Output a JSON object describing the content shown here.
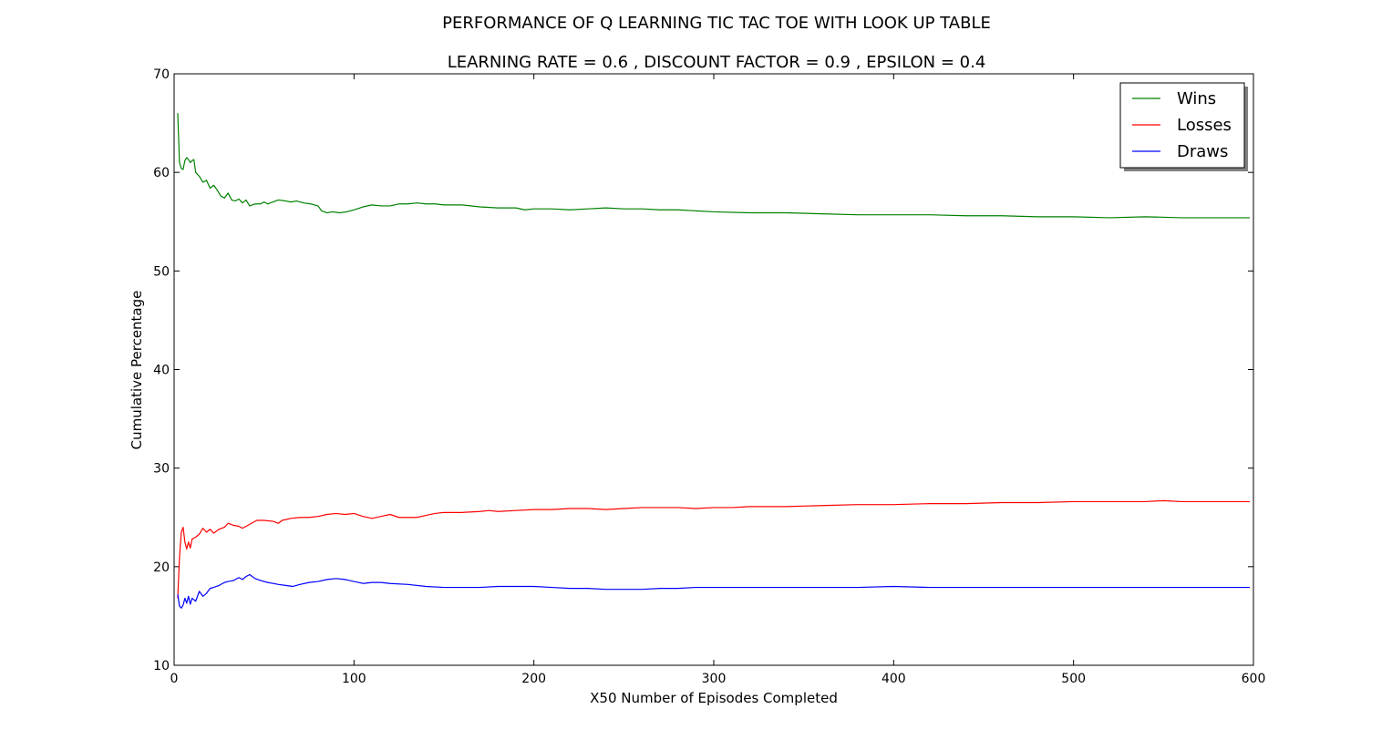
{
  "chart_data": {
    "type": "line",
    "title": "PERFORMANCE OF Q LEARNING TIC TAC TOE WITH LOOK UP TABLE",
    "subtitle": "LEARNING RATE =  0.6 , DISCOUNT FACTOR =  0.9 , EPSILON = 0.4",
    "xlabel": "X50 Number of Episodes Completed",
    "ylabel": "Cumulative Percentage",
    "xlim": [
      0,
      600
    ],
    "ylim": [
      10,
      70
    ],
    "xticks": [
      0,
      100,
      200,
      300,
      400,
      500,
      600
    ],
    "yticks": [
      10,
      20,
      30,
      40,
      50,
      60,
      70
    ],
    "grid": false,
    "legend_position": "top-right",
    "series": [
      {
        "name": "Wins",
        "color": "#008000",
        "points": [
          [
            2,
            66
          ],
          [
            3,
            61
          ],
          [
            4,
            60.4
          ],
          [
            5,
            60.3
          ],
          [
            6,
            61.2
          ],
          [
            7,
            61.5
          ],
          [
            8,
            61.3
          ],
          [
            9,
            61
          ],
          [
            10,
            61.2
          ],
          [
            11,
            61.3
          ],
          [
            12,
            60
          ],
          [
            14,
            59.6
          ],
          [
            16,
            59
          ],
          [
            18,
            59.2
          ],
          [
            20,
            58.4
          ],
          [
            22,
            58.7
          ],
          [
            24,
            58.2
          ],
          [
            26,
            57.6
          ],
          [
            28,
            57.4
          ],
          [
            30,
            57.9
          ],
          [
            32,
            57.2
          ],
          [
            34,
            57.1
          ],
          [
            36,
            57.3
          ],
          [
            38,
            56.9
          ],
          [
            40,
            57.2
          ],
          [
            42,
            56.6
          ],
          [
            45,
            56.8
          ],
          [
            48,
            56.8
          ],
          [
            50,
            57
          ],
          [
            52,
            56.8
          ],
          [
            55,
            57
          ],
          [
            58,
            57.2
          ],
          [
            62,
            57.1
          ],
          [
            65,
            57
          ],
          [
            68,
            57.1
          ],
          [
            72,
            56.9
          ],
          [
            76,
            56.8
          ],
          [
            80,
            56.6
          ],
          [
            82,
            56.1
          ],
          [
            85,
            55.9
          ],
          [
            88,
            56
          ],
          [
            92,
            55.9
          ],
          [
            96,
            56
          ],
          [
            100,
            56.2
          ],
          [
            105,
            56.5
          ],
          [
            110,
            56.7
          ],
          [
            115,
            56.6
          ],
          [
            120,
            56.6
          ],
          [
            125,
            56.8
          ],
          [
            130,
            56.8
          ],
          [
            135,
            56.9
          ],
          [
            140,
            56.8
          ],
          [
            145,
            56.8
          ],
          [
            150,
            56.7
          ],
          [
            160,
            56.7
          ],
          [
            170,
            56.5
          ],
          [
            180,
            56.4
          ],
          [
            190,
            56.4
          ],
          [
            195,
            56.2
          ],
          [
            200,
            56.3
          ],
          [
            210,
            56.3
          ],
          [
            220,
            56.2
          ],
          [
            230,
            56.3
          ],
          [
            240,
            56.4
          ],
          [
            250,
            56.3
          ],
          [
            260,
            56.3
          ],
          [
            270,
            56.2
          ],
          [
            280,
            56.2
          ],
          [
            290,
            56.1
          ],
          [
            300,
            56
          ],
          [
            320,
            55.9
          ],
          [
            340,
            55.9
          ],
          [
            360,
            55.8
          ],
          [
            380,
            55.7
          ],
          [
            400,
            55.7
          ],
          [
            420,
            55.7
          ],
          [
            440,
            55.6
          ],
          [
            460,
            55.6
          ],
          [
            480,
            55.5
          ],
          [
            500,
            55.5
          ],
          [
            520,
            55.4
          ],
          [
            540,
            55.5
          ],
          [
            560,
            55.4
          ],
          [
            580,
            55.4
          ],
          [
            598,
            55.4
          ]
        ]
      },
      {
        "name": "Losses",
        "color": "#ff0000",
        "points": [
          [
            2,
            16.8
          ],
          [
            3,
            21
          ],
          [
            4,
            23.5
          ],
          [
            5,
            24
          ],
          [
            6,
            22.5
          ],
          [
            7,
            21.8
          ],
          [
            8,
            22.5
          ],
          [
            9,
            21.9
          ],
          [
            10,
            22.8
          ],
          [
            12,
            23
          ],
          [
            14,
            23.3
          ],
          [
            16,
            23.9
          ],
          [
            18,
            23.5
          ],
          [
            20,
            23.8
          ],
          [
            22,
            23.4
          ],
          [
            25,
            23.8
          ],
          [
            28,
            24
          ],
          [
            30,
            24.4
          ],
          [
            33,
            24.2
          ],
          [
            36,
            24.1
          ],
          [
            38,
            23.9
          ],
          [
            40,
            24.1
          ],
          [
            43,
            24.4
          ],
          [
            46,
            24.7
          ],
          [
            50,
            24.7
          ],
          [
            55,
            24.6
          ],
          [
            58,
            24.4
          ],
          [
            60,
            24.7
          ],
          [
            65,
            24.9
          ],
          [
            70,
            25
          ],
          [
            75,
            25
          ],
          [
            80,
            25.1
          ],
          [
            85,
            25.3
          ],
          [
            90,
            25.4
          ],
          [
            95,
            25.3
          ],
          [
            100,
            25.4
          ],
          [
            105,
            25.1
          ],
          [
            110,
            24.9
          ],
          [
            115,
            25.1
          ],
          [
            120,
            25.3
          ],
          [
            125,
            25
          ],
          [
            130,
            25
          ],
          [
            135,
            25
          ],
          [
            140,
            25.2
          ],
          [
            145,
            25.4
          ],
          [
            150,
            25.5
          ],
          [
            160,
            25.5
          ],
          [
            170,
            25.6
          ],
          [
            175,
            25.7
          ],
          [
            180,
            25.6
          ],
          [
            190,
            25.7
          ],
          [
            200,
            25.8
          ],
          [
            210,
            25.8
          ],
          [
            220,
            25.9
          ],
          [
            230,
            25.9
          ],
          [
            240,
            25.8
          ],
          [
            250,
            25.9
          ],
          [
            260,
            26
          ],
          [
            270,
            26
          ],
          [
            280,
            26
          ],
          [
            290,
            25.9
          ],
          [
            300,
            26
          ],
          [
            310,
            26
          ],
          [
            320,
            26.1
          ],
          [
            340,
            26.1
          ],
          [
            360,
            26.2
          ],
          [
            380,
            26.3
          ],
          [
            400,
            26.3
          ],
          [
            420,
            26.4
          ],
          [
            440,
            26.4
          ],
          [
            460,
            26.5
          ],
          [
            480,
            26.5
          ],
          [
            500,
            26.6
          ],
          [
            520,
            26.6
          ],
          [
            540,
            26.6
          ],
          [
            550,
            26.7
          ],
          [
            560,
            26.6
          ],
          [
            580,
            26.6
          ],
          [
            598,
            26.6
          ]
        ]
      },
      {
        "name": "Draws",
        "color": "#0000ff",
        "points": [
          [
            2,
            17.2
          ],
          [
            3,
            16
          ],
          [
            4,
            15.8
          ],
          [
            5,
            16.1
          ],
          [
            6,
            16.8
          ],
          [
            7,
            16.3
          ],
          [
            8,
            17
          ],
          [
            9,
            16.2
          ],
          [
            10,
            16.8
          ],
          [
            12,
            16.5
          ],
          [
            14,
            17.5
          ],
          [
            16,
            17
          ],
          [
            18,
            17.3
          ],
          [
            20,
            17.8
          ],
          [
            22,
            17.9
          ],
          [
            25,
            18.1
          ],
          [
            28,
            18.4
          ],
          [
            30,
            18.5
          ],
          [
            33,
            18.6
          ],
          [
            36,
            18.9
          ],
          [
            38,
            18.7
          ],
          [
            40,
            19
          ],
          [
            42,
            19.2
          ],
          [
            45,
            18.8
          ],
          [
            48,
            18.6
          ],
          [
            52,
            18.4
          ],
          [
            55,
            18.3
          ],
          [
            58,
            18.2
          ],
          [
            62,
            18.1
          ],
          [
            66,
            18
          ],
          [
            70,
            18.2
          ],
          [
            75,
            18.4
          ],
          [
            80,
            18.5
          ],
          [
            85,
            18.7
          ],
          [
            90,
            18.8
          ],
          [
            95,
            18.7
          ],
          [
            100,
            18.5
          ],
          [
            105,
            18.3
          ],
          [
            110,
            18.4
          ],
          [
            115,
            18.4
          ],
          [
            120,
            18.3
          ],
          [
            130,
            18.2
          ],
          [
            140,
            18
          ],
          [
            150,
            17.9
          ],
          [
            160,
            17.9
          ],
          [
            170,
            17.9
          ],
          [
            180,
            18
          ],
          [
            190,
            18
          ],
          [
            200,
            18
          ],
          [
            210,
            17.9
          ],
          [
            220,
            17.8
          ],
          [
            230,
            17.8
          ],
          [
            240,
            17.7
          ],
          [
            250,
            17.7
          ],
          [
            260,
            17.7
          ],
          [
            270,
            17.8
          ],
          [
            280,
            17.8
          ],
          [
            290,
            17.9
          ],
          [
            300,
            17.9
          ],
          [
            320,
            17.9
          ],
          [
            340,
            17.9
          ],
          [
            360,
            17.9
          ],
          [
            380,
            17.9
          ],
          [
            400,
            18
          ],
          [
            420,
            17.9
          ],
          [
            440,
            17.9
          ],
          [
            460,
            17.9
          ],
          [
            480,
            17.9
          ],
          [
            500,
            17.9
          ],
          [
            520,
            17.9
          ],
          [
            540,
            17.9
          ],
          [
            560,
            17.9
          ],
          [
            580,
            17.9
          ],
          [
            598,
            17.9
          ]
        ]
      }
    ]
  }
}
